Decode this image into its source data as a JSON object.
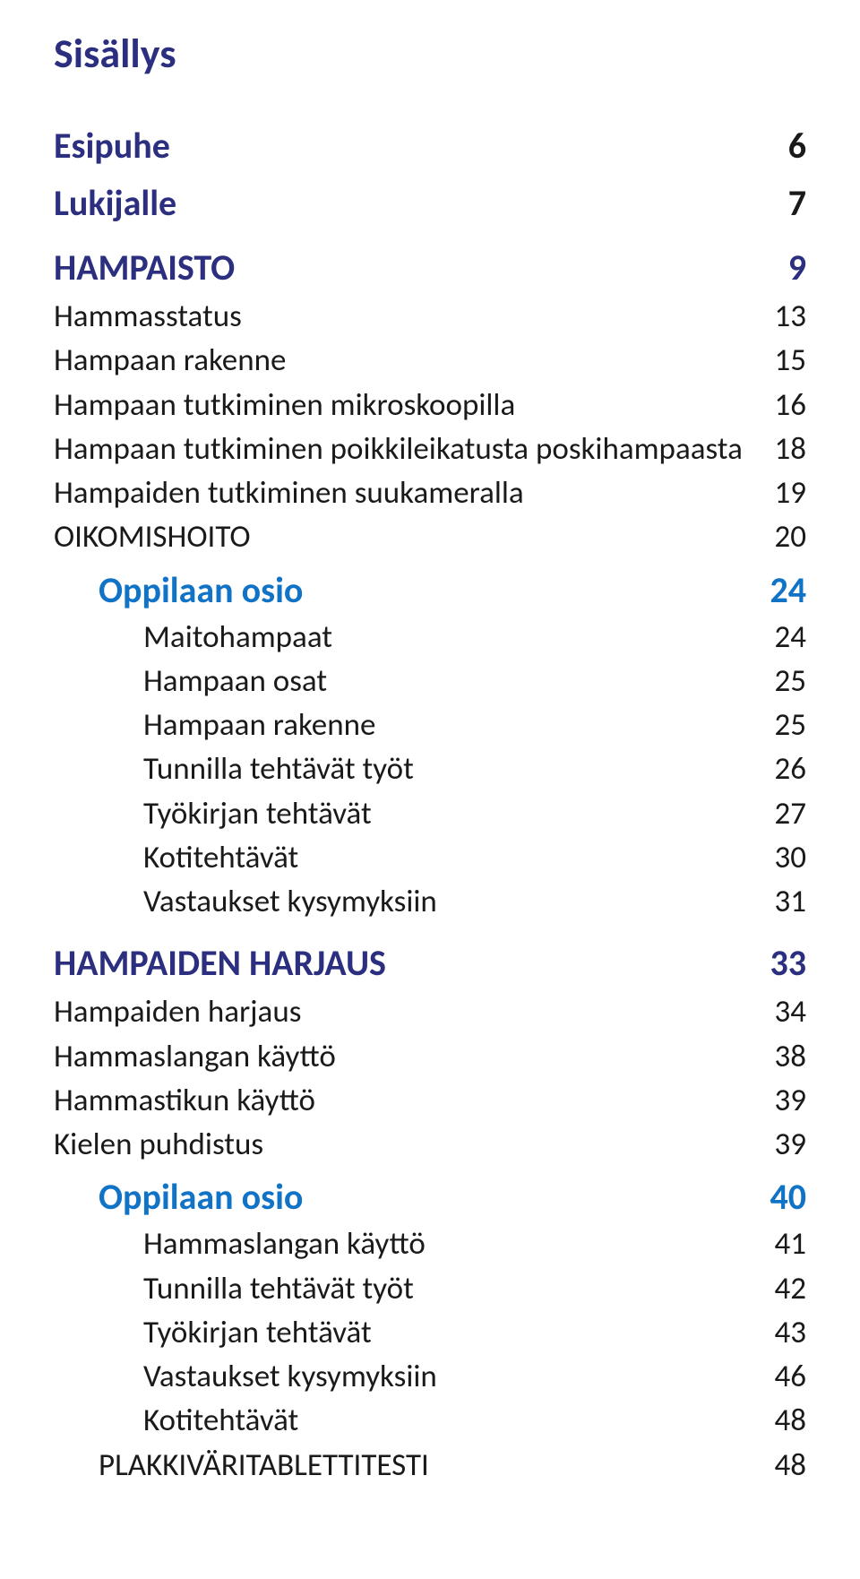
{
  "colors": {
    "navy": "#2c2f7f",
    "black": "#1a1a1a",
    "blue": "#1073c6",
    "bg": "#ffffff"
  },
  "typography": {
    "title_fontsize": 46,
    "h1_fontsize": 40,
    "section_fontsize": 40,
    "sub_fontsize": 35,
    "line_height": 1.35
  },
  "title": "Sisällys",
  "entries": [
    {
      "label": "Esipuhe",
      "page": "6",
      "level": "h1",
      "color": "navy",
      "page_color": "black",
      "indent": 0
    },
    {
      "label": "Lukijalle",
      "page": "7",
      "level": "h1",
      "color": "navy",
      "page_color": "black",
      "indent": 0
    },
    {
      "label": "HAMPAISTO",
      "page": "9",
      "level": "section",
      "color": "navy",
      "page_color": "navy",
      "indent": 0
    },
    {
      "label": "Hammasstatus",
      "page": "13",
      "level": "sub",
      "color": "black",
      "page_color": "black",
      "indent": 0
    },
    {
      "label": "Hampaan rakenne",
      "page": "15",
      "level": "sub",
      "color": "black",
      "page_color": "black",
      "indent": 0
    },
    {
      "label": "Hampaan tutkiminen mikroskoopilla",
      "page": "16",
      "level": "sub",
      "color": "black",
      "page_color": "black",
      "indent": 0
    },
    {
      "label": "Hampaan tutkiminen poikkileikatusta poskihampaasta",
      "page": "18",
      "level": "sub",
      "color": "black",
      "page_color": "black",
      "indent": 0
    },
    {
      "label": "Hampaiden tutkiminen suukameralla",
      "page": "19",
      "level": "sub",
      "color": "black",
      "page_color": "black",
      "indent": 0
    },
    {
      "label": "OIKOMISHOITO",
      "page": "20",
      "level": "sub",
      "color": "black",
      "page_color": "black",
      "indent": 0
    },
    {
      "label": "Oppilaan osio",
      "page": "24",
      "level": "oppilaan",
      "color": "blue",
      "page_color": "blue",
      "indent": 50
    },
    {
      "label": "Maitohampaat",
      "page": "24",
      "level": "oppsub",
      "color": "black",
      "page_color": "black",
      "indent": 50
    },
    {
      "label": "Hampaan osat",
      "page": "25",
      "level": "oppsub",
      "color": "black",
      "page_color": "black",
      "indent": 50
    },
    {
      "label": "Hampaan rakenne",
      "page": "25",
      "level": "oppsub",
      "color": "black",
      "page_color": "black",
      "indent": 50
    },
    {
      "label": "Tunnilla tehtävät työt",
      "page": "26",
      "level": "oppsub",
      "color": "black",
      "page_color": "black",
      "indent": 50
    },
    {
      "label": "Työkirjan tehtävät",
      "page": "27",
      "level": "oppsub",
      "color": "black",
      "page_color": "black",
      "indent": 50
    },
    {
      "label": "Kotitehtävät",
      "page": "30",
      "level": "oppsub",
      "color": "black",
      "page_color": "black",
      "indent": 50
    },
    {
      "label": "Vastaukset kysymyksiin",
      "page": "31",
      "level": "oppsub",
      "color": "black",
      "page_color": "black",
      "indent": 50
    },
    {
      "label": "HAMPAIDEN HARJAUS",
      "page": "33",
      "level": "section",
      "color": "navy",
      "page_color": "navy",
      "indent": 0
    },
    {
      "label": "Hampaiden harjaus",
      "page": "34",
      "level": "sub",
      "color": "black",
      "page_color": "black",
      "indent": 0
    },
    {
      "label": "Hammaslangan käyttö",
      "page": "38",
      "level": "sub",
      "color": "black",
      "page_color": "black",
      "indent": 0
    },
    {
      "label": "Hammastikun käyttö",
      "page": "39",
      "level": "sub",
      "color": "black",
      "page_color": "black",
      "indent": 0
    },
    {
      "label": "Kielen puhdistus",
      "page": "39",
      "level": "sub",
      "color": "black",
      "page_color": "black",
      "indent": 0
    },
    {
      "label": "Oppilaan osio",
      "page": "40",
      "level": "oppilaan",
      "color": "blue",
      "page_color": "blue",
      "indent": 50
    },
    {
      "label": "Hammaslangan käyttö",
      "page": "41",
      "level": "oppsub",
      "color": "black",
      "page_color": "black",
      "indent": 50
    },
    {
      "label": "Tunnilla tehtävät työt",
      "page": "42",
      "level": "oppsub",
      "color": "black",
      "page_color": "black",
      "indent": 50
    },
    {
      "label": "Työkirjan tehtävät",
      "page": "43",
      "level": "oppsub",
      "color": "black",
      "page_color": "black",
      "indent": 50
    },
    {
      "label": "Vastaukset kysymyksiin",
      "page": "46",
      "level": "oppsub",
      "color": "black",
      "page_color": "black",
      "indent": 50
    },
    {
      "label": "Kotitehtävät",
      "page": "48",
      "level": "oppsub",
      "color": "black",
      "page_color": "black",
      "indent": 50
    },
    {
      "label": "PLAKKIVÄRITABLETTITESTI",
      "page": "48",
      "level": "sub",
      "color": "black",
      "page_color": "black",
      "indent": 50
    }
  ]
}
